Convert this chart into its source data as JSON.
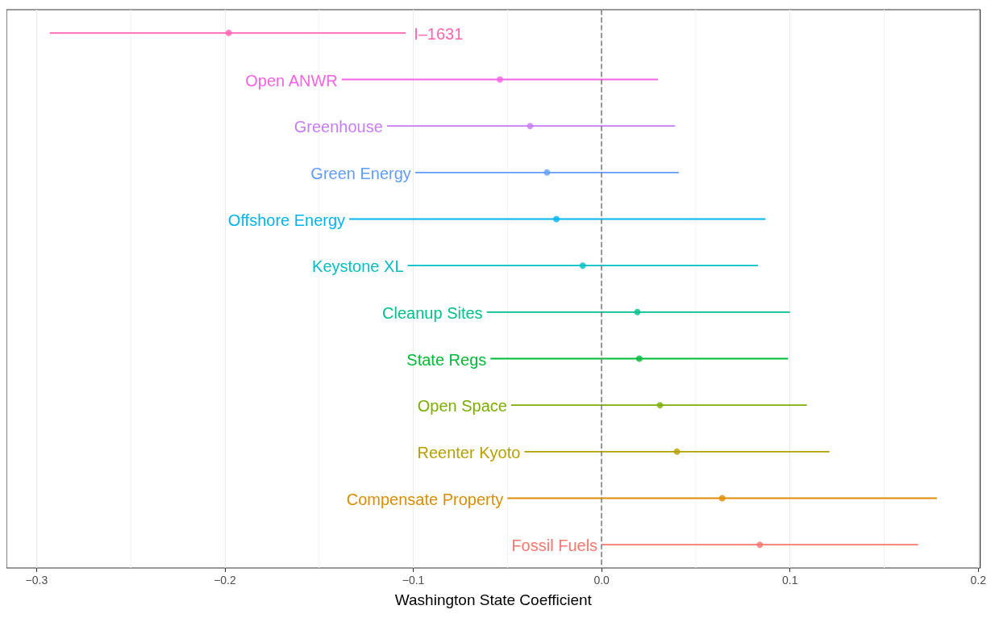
{
  "chart_data": {
    "type": "scatter",
    "orientation": "horizontal",
    "xlabel": "Washington State Coefficient",
    "categories": [
      "I–1631",
      "Open ANWR",
      "Greenhouse",
      "Green Energy",
      "Offshore Energy",
      "Keystone XL",
      "Cleanup Sites",
      "State Regs",
      "Open Space",
      "Reenter Kyoto",
      "Compensate Property",
      "Fossil Fuels"
    ],
    "values": [
      -0.198,
      -0.054,
      -0.038,
      -0.029,
      -0.024,
      -0.01,
      0.019,
      0.02,
      0.031,
      0.04,
      0.064,
      0.084
    ],
    "errors": [
      [
        -0.293,
        -0.104
      ],
      [
        -0.138,
        0.03
      ],
      [
        -0.114,
        0.039
      ],
      [
        -0.099,
        0.041
      ],
      [
        -0.134,
        0.087
      ],
      [
        -0.103,
        0.083
      ],
      [
        -0.061,
        0.1
      ],
      [
        -0.059,
        0.099
      ],
      [
        -0.048,
        0.109
      ],
      [
        -0.041,
        0.121
      ],
      [
        -0.05,
        0.178
      ],
      [
        0.0,
        0.168
      ]
    ],
    "colors": [
      "#ff64b0",
      "#f564e3",
      "#c77cff",
      "#619cff",
      "#00b4f0",
      "#00bfc4",
      "#00c08b",
      "#00ba38",
      "#7cae00",
      "#b79f00",
      "#de8c00",
      "#f8766d"
    ],
    "xlim": [
      -0.316,
      0.201
    ],
    "xticks": [
      {
        "value": -0.3,
        "label": "−0.3"
      },
      {
        "value": -0.2,
        "label": "−0.2"
      },
      {
        "value": -0.1,
        "label": "−0.1"
      },
      {
        "value": 0,
        "label": "0.0"
      },
      {
        "value": 0.1,
        "label": "0.1"
      },
      {
        "value": 0.2,
        "label": "0.2"
      }
    ],
    "ref_lines": [
      {
        "axis": "x",
        "value": 0,
        "color": "#7f7f7f",
        "line_style": "dashed"
      }
    ],
    "grid": "x",
    "marker": "circle",
    "tick_labels": "x"
  }
}
